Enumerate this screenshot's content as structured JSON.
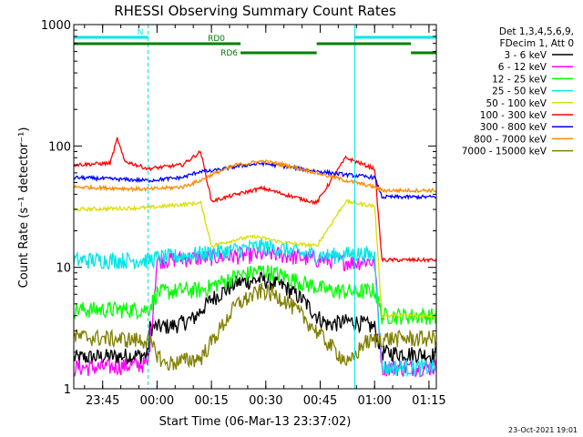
{
  "chart_data": {
    "type": "line",
    "title": "RHESSI Observing Summary Count Rates",
    "xlabel": "Start Time (06-Mar-13 23:37:02)",
    "ylabel": "Count Rate (s⁻¹ detector⁻¹)",
    "y_scale": "log",
    "ylim": [
      1,
      1000
    ],
    "xlim": [
      "23:37:02",
      "01:17:00"
    ],
    "x_tick_labels": [
      "23:45",
      "00:00",
      "00:15",
      "00:30",
      "00:45",
      "01:00",
      "01:15"
    ],
    "y_tick_labels": [
      "1",
      "10",
      "100",
      "1000"
    ],
    "grid": false,
    "legend_placement": "right",
    "legend_header": [
      "Det 1,3,4,5,6,9,",
      "FDecim 1, Att 0"
    ],
    "footer_date": "23-Oct-2021 19:01",
    "x_unit_note": "minutes after 23:37:02",
    "flags": [
      {
        "label": "N",
        "color": "#00e6e6",
        "segments": [
          [
            0,
            20.5
          ],
          [
            77.5,
            100
          ]
        ],
        "dashed_marks": [
          20.5,
          100
        ]
      },
      {
        "label": "RD0",
        "color": "#008000",
        "segments": [
          [
            0,
            46
          ],
          [
            67,
            93
          ]
        ]
      },
      {
        "label": "RD6",
        "color": "#008000",
        "segments": [
          [
            46,
            67
          ],
          [
            93,
            100
          ]
        ]
      }
    ],
    "vertical_markers": [
      {
        "x": 20.5,
        "style": "dashed",
        "color": "#00e6e6"
      },
      {
        "x": 77.5,
        "style": "solid",
        "color": "#00e6e6"
      },
      {
        "x": 100,
        "style": "dashed",
        "color": "#00e6e6"
      }
    ],
    "series": [
      {
        "name": "3 - 6 keV",
        "color": "#000000",
        "x": [
          0,
          20.5,
          21,
          27,
          30,
          33,
          38,
          45,
          52,
          58,
          63,
          67,
          70,
          76,
          79,
          83,
          85,
          100
        ],
        "y": [
          1.8,
          1.9,
          3.2,
          3.3,
          3.5,
          3.8,
          5.5,
          7.5,
          8.0,
          7.0,
          5.5,
          4.0,
          3.4,
          3.6,
          3.5,
          3.2,
          2.0,
          1.9
        ]
      },
      {
        "name": "6 - 12 keV",
        "color": "#ff00ff",
        "x": [
          0,
          8,
          20.5,
          23,
          35,
          45,
          55,
          63,
          70,
          78,
          80,
          83,
          85,
          100
        ],
        "y": [
          1.5,
          1.5,
          1.6,
          11.5,
          12.0,
          12.5,
          13.0,
          12.0,
          11.5,
          11.0,
          11.5,
          11.0,
          1.5,
          1.5
        ]
      },
      {
        "name": "12 - 25 keV",
        "color": "#00ff00",
        "x": [
          0,
          20.5,
          23,
          30,
          35,
          45,
          52,
          58,
          63,
          70,
          78,
          83,
          85,
          100
        ],
        "y": [
          4.5,
          4.5,
          6.2,
          6.5,
          6.5,
          8.5,
          9.5,
          8.5,
          7.5,
          6.5,
          6.3,
          6.5,
          4.0,
          4.0
        ]
      },
      {
        "name": "25 - 50 keV",
        "color": "#00e6e6",
        "x": [
          0,
          20.5,
          23,
          30,
          35,
          45,
          52,
          58,
          63,
          70,
          78,
          83,
          85,
          100
        ],
        "y": [
          11.5,
          11.5,
          12.0,
          12.5,
          13.0,
          14.0,
          15.0,
          14.0,
          13.0,
          12.5,
          13.0,
          12.5,
          1.5,
          1.5
        ]
      },
      {
        "name": "50 - 100 keV",
        "color": "#dddd00",
        "x": [
          0,
          20.5,
          30,
          35,
          38,
          45,
          50,
          58,
          67,
          75,
          80,
          83,
          85,
          100
        ],
        "y": [
          30,
          31,
          33,
          34,
          15,
          17,
          18,
          16,
          15,
          35,
          33,
          32,
          4.0,
          4.0
        ]
      },
      {
        "name": "100 - 300 keV",
        "color": "#ff0000",
        "x": [
          0,
          10,
          12,
          14,
          20.5,
          30,
          35,
          38,
          45,
          52,
          58,
          67,
          75,
          83,
          85,
          100
        ],
        "y": [
          70,
          72,
          115,
          75,
          65,
          70,
          90,
          35,
          40,
          45,
          40,
          34,
          80,
          65,
          11.5,
          11.5
        ]
      },
      {
        "name": "300 - 800 keV",
        "color": "#0000ff",
        "x": [
          0,
          20.5,
          30,
          35,
          38,
          45,
          52,
          58,
          67,
          75,
          83,
          85,
          100
        ],
        "y": [
          55,
          52,
          55,
          62,
          62,
          68,
          72,
          68,
          62,
          58,
          55,
          38,
          38
        ]
      },
      {
        "name": "800 - 7000 keV",
        "color": "#ff8800",
        "x": [
          0,
          20.5,
          30,
          35,
          38,
          45,
          52,
          58,
          67,
          75,
          83,
          85,
          100
        ],
        "y": [
          46,
          44,
          46,
          52,
          58,
          70,
          75,
          70,
          60,
          52,
          46,
          43,
          43
        ]
      },
      {
        "name": "7000 - 15000 keV",
        "color": "#808000",
        "x": [
          0,
          20.5,
          25,
          30,
          35,
          45,
          52,
          58,
          63,
          70,
          76,
          80,
          85,
          100
        ],
        "y": [
          2.7,
          2.5,
          1.6,
          1.7,
          1.8,
          5.0,
          6.5,
          5.5,
          4.0,
          2.4,
          1.6,
          2.4,
          2.6,
          2.6
        ]
      }
    ]
  }
}
